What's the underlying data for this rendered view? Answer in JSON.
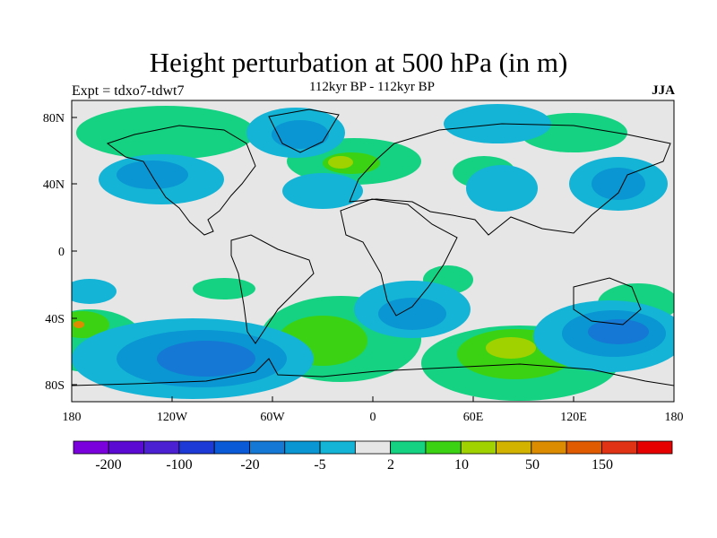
{
  "title": "Height perturbation at 500 hPa (in m)",
  "subtitle": "112kyr BP - 112kyr BP",
  "left_label": "Expt = tdxo7-tdwt7",
  "right_label": "JJA",
  "map": {
    "projection": "cylindrical-equidistant",
    "lon_range": [
      -180,
      180
    ],
    "lat_range": [
      -90,
      90
    ],
    "background_color": "#e6e6e6",
    "lat_ticks": [
      "80N",
      "40N",
      "0",
      "40S",
      "80S"
    ],
    "lon_ticks": [
      "180",
      "120W",
      "60W",
      "0",
      "60E",
      "120E",
      "180"
    ]
  },
  "colorbar": {
    "colors": [
      "#7a00dc",
      "#5a0ad2",
      "#4a20d2",
      "#1e3ad6",
      "#0a5ad8",
      "#1478d4",
      "#0a96d2",
      "#14b4d6",
      "#e6e6e6",
      "#14d282",
      "#3cd214",
      "#a0d200",
      "#d2b400",
      "#dc8c00",
      "#e05a00",
      "#e03214",
      "#e60000"
    ],
    "labels": [
      "-200",
      "-100",
      "-20",
      "-5",
      "2",
      "10",
      "50",
      "150"
    ]
  }
}
